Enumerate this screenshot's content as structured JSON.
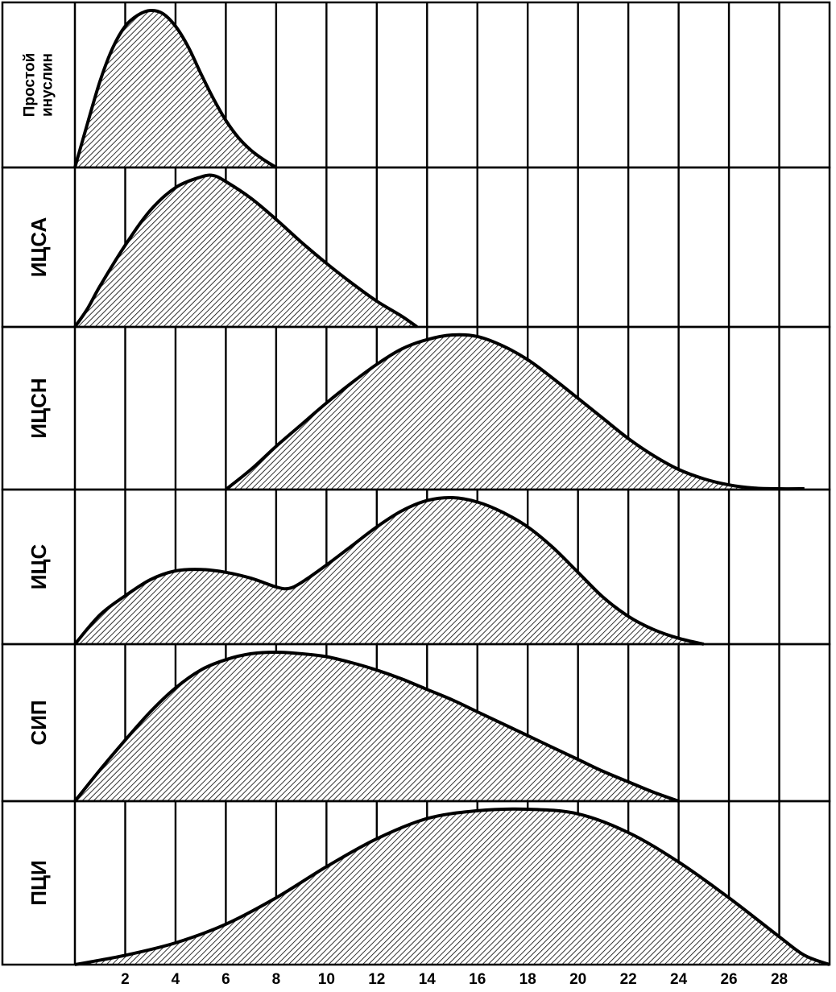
{
  "chart_data": {
    "type": "area",
    "title": "",
    "xlabel": "",
    "ylabel": "",
    "xlim": [
      0,
      30
    ],
    "x_ticks": [
      2,
      4,
      6,
      8,
      10,
      12,
      14,
      16,
      18,
      20,
      22,
      24,
      26,
      28
    ],
    "x_tick_labels": [
      "2",
      "4",
      "6",
      "8",
      "10",
      "12",
      "14",
      "16",
      "18",
      "20",
      "22",
      "24",
      "26",
      "28"
    ],
    "grid": true,
    "y_relative": true,
    "y_range": [
      0,
      1
    ],
    "series": [
      {
        "name": "Простой инуслин",
        "label_lines": [
          "Простой",
          "инуслин"
        ],
        "points": [
          [
            0,
            0
          ],
          [
            0.5,
            0.28
          ],
          [
            1,
            0.55
          ],
          [
            1.5,
            0.76
          ],
          [
            2,
            0.9
          ],
          [
            2.5,
            0.97
          ],
          [
            3,
            1.0
          ],
          [
            3.5,
            0.98
          ],
          [
            4,
            0.9
          ],
          [
            4.5,
            0.77
          ],
          [
            5,
            0.6
          ],
          [
            5.5,
            0.44
          ],
          [
            6,
            0.3
          ],
          [
            6.5,
            0.19
          ],
          [
            7,
            0.11
          ],
          [
            7.5,
            0.05
          ],
          [
            8,
            0
          ]
        ]
      },
      {
        "name": "ИЦСА",
        "label_lines": [
          "ИЦСА"
        ],
        "points": [
          [
            0,
            0
          ],
          [
            0.5,
            0.12
          ],
          [
            1,
            0.27
          ],
          [
            2,
            0.54
          ],
          [
            3,
            0.77
          ],
          [
            4,
            0.92
          ],
          [
            5,
            0.99
          ],
          [
            5.5,
            1.0
          ],
          [
            6,
            0.96
          ],
          [
            7,
            0.85
          ],
          [
            8,
            0.71
          ],
          [
            9,
            0.56
          ],
          [
            10,
            0.42
          ],
          [
            11,
            0.29
          ],
          [
            12,
            0.17
          ],
          [
            13,
            0.07
          ],
          [
            13.6,
            0
          ]
        ]
      },
      {
        "name": "ИЦСН",
        "label_lines": [
          "ИЦСН"
        ],
        "points": [
          [
            6,
            0
          ],
          [
            7,
            0.13
          ],
          [
            8,
            0.28
          ],
          [
            9,
            0.42
          ],
          [
            10,
            0.56
          ],
          [
            11,
            0.69
          ],
          [
            12,
            0.81
          ],
          [
            13,
            0.91
          ],
          [
            14,
            0.97
          ],
          [
            15,
            1.0
          ],
          [
            16,
            0.99
          ],
          [
            17,
            0.93
          ],
          [
            18,
            0.84
          ],
          [
            19,
            0.72
          ],
          [
            20,
            0.59
          ],
          [
            21,
            0.46
          ],
          [
            22,
            0.33
          ],
          [
            23,
            0.22
          ],
          [
            24,
            0.13
          ],
          [
            25,
            0.07
          ],
          [
            26,
            0.03
          ],
          [
            27,
            0.01
          ],
          [
            28,
            0.005
          ],
          [
            29,
            0.005
          ]
        ]
      },
      {
        "name": "ИЦС",
        "label_lines": [
          "ИЦС"
        ],
        "points": [
          [
            0,
            0
          ],
          [
            1,
            0.2
          ],
          [
            2,
            0.33
          ],
          [
            3,
            0.44
          ],
          [
            4,
            0.5
          ],
          [
            5,
            0.51
          ],
          [
            6,
            0.49
          ],
          [
            7,
            0.45
          ],
          [
            8,
            0.39
          ],
          [
            8.5,
            0.38
          ],
          [
            9,
            0.42
          ],
          [
            10,
            0.54
          ],
          [
            11,
            0.67
          ],
          [
            12,
            0.8
          ],
          [
            13,
            0.91
          ],
          [
            14,
            0.98
          ],
          [
            15,
            1.0
          ],
          [
            16,
            0.97
          ],
          [
            17,
            0.9
          ],
          [
            18,
            0.8
          ],
          [
            19,
            0.66
          ],
          [
            20,
            0.49
          ],
          [
            21,
            0.32
          ],
          [
            22,
            0.19
          ],
          [
            23,
            0.1
          ],
          [
            24,
            0.04
          ],
          [
            25,
            0
          ]
        ]
      },
      {
        "name": "СИП",
        "label_lines": [
          "СИП"
        ],
        "points": [
          [
            0,
            0
          ],
          [
            1,
            0.21
          ],
          [
            2,
            0.41
          ],
          [
            3,
            0.6
          ],
          [
            4,
            0.76
          ],
          [
            5,
            0.88
          ],
          [
            6,
            0.95
          ],
          [
            7,
            0.99
          ],
          [
            8,
            1.0
          ],
          [
            9,
            0.99
          ],
          [
            10,
            0.97
          ],
          [
            11,
            0.93
          ],
          [
            12,
            0.88
          ],
          [
            13,
            0.82
          ],
          [
            14,
            0.75
          ],
          [
            15,
            0.68
          ],
          [
            16,
            0.6
          ],
          [
            17,
            0.52
          ],
          [
            18,
            0.44
          ],
          [
            19,
            0.36
          ],
          [
            20,
            0.28
          ],
          [
            21,
            0.2
          ],
          [
            22,
            0.13
          ],
          [
            23,
            0.06
          ],
          [
            24,
            0
          ]
        ]
      },
      {
        "name": "ПЦИ",
        "label_lines": [
          "ПЦИ"
        ],
        "points": [
          [
            0,
            0
          ],
          [
            2,
            0.06
          ],
          [
            4,
            0.14
          ],
          [
            6,
            0.26
          ],
          [
            8,
            0.43
          ],
          [
            10,
            0.63
          ],
          [
            12,
            0.81
          ],
          [
            14,
            0.94
          ],
          [
            16,
            0.99
          ],
          [
            18,
            1.0
          ],
          [
            20,
            0.97
          ],
          [
            22,
            0.85
          ],
          [
            24,
            0.66
          ],
          [
            26,
            0.43
          ],
          [
            28,
            0.18
          ],
          [
            29,
            0.06
          ],
          [
            30,
            0
          ]
        ]
      }
    ]
  }
}
